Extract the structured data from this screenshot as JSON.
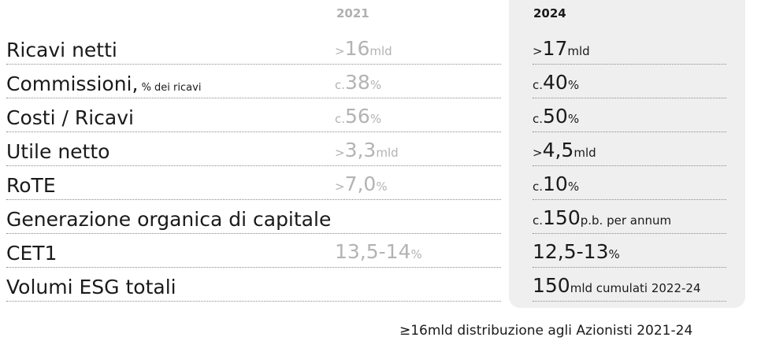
{
  "headers": {
    "col_2021": "2021",
    "col_2024": "2024"
  },
  "rows": [
    {
      "label": "Ricavi netti",
      "label_sub": "",
      "v21_pre": ">",
      "v21_num": "16",
      "v21_suf": "mld",
      "v24_pre": ">",
      "v24_num": "17",
      "v24_suf": "mld"
    },
    {
      "label": "Commissioni,",
      "label_sub": " % dei ricavi",
      "v21_pre": "c.",
      "v21_num": "38",
      "v21_suf": "%",
      "v24_pre": "c.",
      "v24_num": "40",
      "v24_suf": "%"
    },
    {
      "label": "Costi / Ricavi",
      "label_sub": "",
      "v21_pre": "c.",
      "v21_num": "56",
      "v21_suf": "%",
      "v24_pre": "c.",
      "v24_num": "50",
      "v24_suf": "%"
    },
    {
      "label": "Utile netto",
      "label_sub": "",
      "v21_pre": ">",
      "v21_num": "3,3",
      "v21_suf": "mld",
      "v24_pre": ">",
      "v24_num": "4,5",
      "v24_suf": "mld"
    },
    {
      "label": "RoTE",
      "label_sub": "",
      "v21_pre": ">",
      "v21_num": "7,0",
      "v21_suf": "%",
      "v24_pre": "c.",
      "v24_num": "10",
      "v24_suf": "%"
    },
    {
      "label": "Generazione organica di capitale",
      "label_sub": "",
      "v21_pre": "",
      "v21_num": "",
      "v21_suf": "",
      "v24_pre": "c.",
      "v24_num": "150",
      "v24_suf": "p.b. per annum"
    },
    {
      "label": "CET1",
      "label_sub": "",
      "v21_pre": "",
      "v21_num": "13,5-14",
      "v21_suf": "%",
      "v24_pre": "",
      "v24_num": "12,5-13",
      "v24_suf": "%"
    },
    {
      "label": "Volumi ESG totali",
      "label_sub": "",
      "v21_pre": "",
      "v21_num": "",
      "v21_suf": "",
      "v24_pre": "",
      "v24_num": "150",
      "v24_suf": "mld cumulati 2022-24"
    }
  ],
  "footer": "≥16mld distribuzione agli Azionisti  2021-24"
}
